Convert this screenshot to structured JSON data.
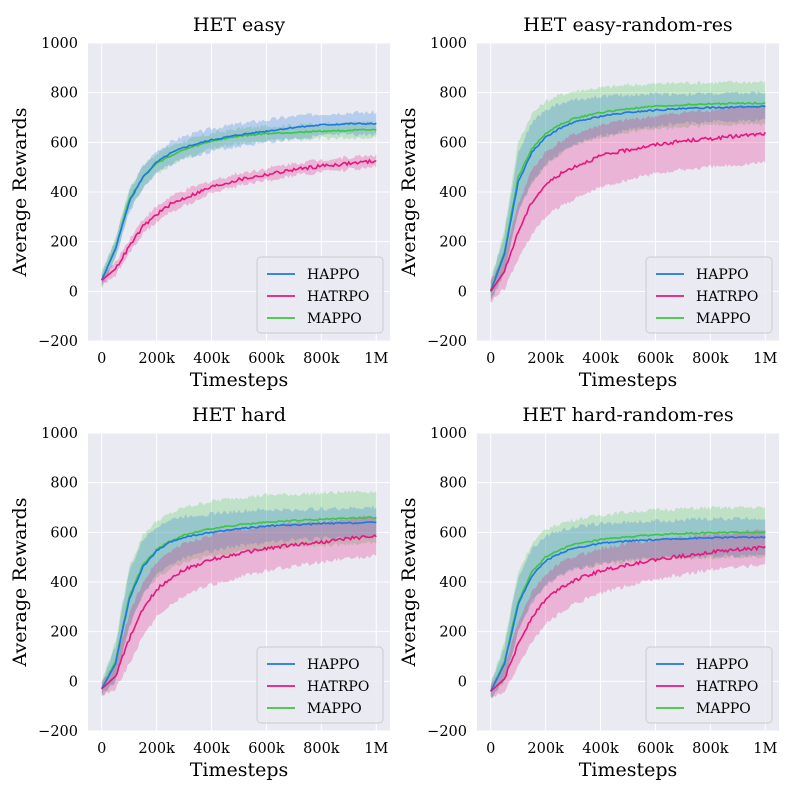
{
  "figure": {
    "xlabel": "Timesteps",
    "ylabel": "Average Rewards"
  },
  "series_colors": {
    "HAPPO": "#1f77e0",
    "HATRPO": "#e8157f",
    "MAPPO": "#3ec63e"
  },
  "chart_data": [
    {
      "type": "line",
      "title": "HET easy",
      "xlabel": "Timesteps",
      "ylabel": "Average Rewards",
      "xlim": [
        0,
        1000000
      ],
      "ylim": [
        -200,
        1000
      ],
      "xticks": [
        "0",
        "200k",
        "400k",
        "600k",
        "800k",
        "1M"
      ],
      "yticks": [
        "−200",
        "0",
        "200",
        "400",
        "600",
        "800",
        "1000"
      ],
      "legend": [
        "HAPPO",
        "HATRPO",
        "MAPPO"
      ],
      "x": [
        0,
        50000,
        100000,
        150000,
        200000,
        250000,
        300000,
        400000,
        500000,
        600000,
        700000,
        800000,
        900000,
        1000000
      ],
      "series": [
        {
          "name": "HAPPO",
          "values": [
            45,
            170,
            360,
            460,
            520,
            555,
            580,
            610,
            630,
            645,
            660,
            670,
            675,
            675
          ],
          "band": [
            30,
            35,
            40,
            45,
            45,
            45,
            45,
            45,
            45,
            45,
            45,
            45,
            45,
            45
          ]
        },
        {
          "name": "HATRPO",
          "values": [
            45,
            90,
            180,
            260,
            310,
            350,
            375,
            420,
            450,
            470,
            490,
            505,
            515,
            525
          ],
          "band": [
            20,
            25,
            30,
            30,
            30,
            30,
            30,
            25,
            25,
            25,
            25,
            25,
            25,
            25
          ]
        },
        {
          "name": "MAPPO",
          "values": [
            45,
            175,
            370,
            460,
            515,
            545,
            570,
            605,
            625,
            635,
            640,
            645,
            648,
            650
          ],
          "band": [
            30,
            40,
            45,
            45,
            40,
            40,
            35,
            30,
            30,
            30,
            30,
            30,
            30,
            30
          ]
        }
      ]
    },
    {
      "type": "line",
      "title": "HET easy-random-res",
      "xlabel": "Timesteps",
      "ylabel": "Average Rewards",
      "xlim": [
        0,
        1000000
      ],
      "ylim": [
        -200,
        1000
      ],
      "xticks": [
        "0",
        "200k",
        "400k",
        "600k",
        "800k",
        "1M"
      ],
      "yticks": [
        "−200",
        "0",
        "200",
        "400",
        "600",
        "800",
        "1000"
      ],
      "legend": [
        "HAPPO",
        "HATRPO",
        "MAPPO"
      ],
      "x": [
        0,
        50000,
        100000,
        150000,
        200000,
        250000,
        300000,
        400000,
        500000,
        600000,
        700000,
        800000,
        900000,
        1000000
      ],
      "series": [
        {
          "name": "HAPPO",
          "values": [
            0,
            150,
            440,
            560,
            620,
            655,
            680,
            705,
            720,
            730,
            735,
            740,
            742,
            745
          ],
          "band": [
            40,
            80,
            120,
            120,
            110,
            100,
            90,
            80,
            70,
            65,
            60,
            55,
            55,
            55
          ]
        },
        {
          "name": "HATRPO",
          "values": [
            0,
            80,
            240,
            360,
            430,
            470,
            500,
            545,
            570,
            590,
            605,
            615,
            625,
            635
          ],
          "band": [
            40,
            70,
            110,
            130,
            130,
            130,
            130,
            125,
            120,
            115,
            115,
            115,
            115,
            115
          ]
        },
        {
          "name": "MAPPO",
          "values": [
            5,
            160,
            460,
            575,
            635,
            670,
            695,
            720,
            735,
            745,
            750,
            755,
            757,
            758
          ],
          "band": [
            40,
            90,
            140,
            140,
            130,
            120,
            110,
            100,
            95,
            90,
            90,
            85,
            85,
            85
          ]
        }
      ]
    },
    {
      "type": "line",
      "title": "HET hard",
      "xlabel": "Timesteps",
      "ylabel": "Average Rewards",
      "xlim": [
        0,
        1000000
      ],
      "ylim": [
        -200,
        1000
      ],
      "xticks": [
        "0",
        "200k",
        "400k",
        "600k",
        "800k",
        "1M"
      ],
      "yticks": [
        "−200",
        "0",
        "200",
        "400",
        "600",
        "800",
        "1000"
      ],
      "legend": [
        "HAPPO",
        "HATRPO",
        "MAPPO"
      ],
      "x": [
        0,
        50000,
        100000,
        150000,
        200000,
        250000,
        300000,
        400000,
        500000,
        600000,
        700000,
        800000,
        900000,
        1000000
      ],
      "series": [
        {
          "name": "HAPPO",
          "values": [
            -30,
            70,
            330,
            460,
            525,
            560,
            580,
            600,
            615,
            625,
            630,
            635,
            637,
            640
          ],
          "band": [
            25,
            70,
            110,
            110,
            100,
            90,
            85,
            75,
            70,
            65,
            60,
            60,
            60,
            60
          ]
        },
        {
          "name": "HATRPO",
          "values": [
            -30,
            20,
            170,
            290,
            370,
            415,
            450,
            490,
            515,
            535,
            550,
            560,
            575,
            585
          ],
          "band": [
            25,
            50,
            100,
            110,
            110,
            110,
            105,
            100,
            95,
            90,
            85,
            80,
            80,
            80
          ]
        },
        {
          "name": "MAPPO",
          "values": [
            -30,
            80,
            340,
            470,
            530,
            565,
            590,
            615,
            630,
            640,
            648,
            652,
            658,
            660
          ],
          "band": [
            30,
            80,
            120,
            120,
            115,
            110,
            110,
            110,
            110,
            110,
            105,
            105,
            105,
            105
          ]
        }
      ]
    },
    {
      "type": "line",
      "title": "HET hard-random-res",
      "xlabel": "Timesteps",
      "ylabel": "Average Rewards",
      "xlim": [
        0,
        1000000
      ],
      "ylim": [
        -200,
        1000
      ],
      "xticks": [
        "0",
        "200k",
        "400k",
        "600k",
        "800k",
        "1M"
      ],
      "yticks": [
        "−200",
        "0",
        "200",
        "400",
        "600",
        "800",
        "1000"
      ],
      "legend": [
        "HAPPO",
        "HATRPO",
        "MAPPO"
      ],
      "x": [
        0,
        50000,
        100000,
        150000,
        200000,
        250000,
        300000,
        400000,
        500000,
        600000,
        700000,
        800000,
        900000,
        1000000
      ],
      "series": [
        {
          "name": "HAPPO",
          "values": [
            -40,
            70,
            310,
            425,
            485,
            515,
            535,
            555,
            565,
            570,
            575,
            578,
            580,
            580
          ],
          "band": [
            25,
            70,
            110,
            110,
            100,
            90,
            85,
            80,
            75,
            75,
            75,
            75,
            75,
            75
          ]
        },
        {
          "name": "HATRPO",
          "values": [
            -40,
            10,
            150,
            260,
            330,
            375,
            405,
            445,
            470,
            490,
            505,
            520,
            530,
            540
          ],
          "band": [
            25,
            50,
            90,
            100,
            100,
            100,
            95,
            90,
            85,
            80,
            75,
            70,
            70,
            70
          ]
        },
        {
          "name": "MAPPO",
          "values": [
            -40,
            80,
            320,
            440,
            500,
            530,
            550,
            570,
            582,
            590,
            595,
            598,
            600,
            600
          ],
          "band": [
            30,
            80,
            120,
            115,
            110,
            105,
            100,
            100,
            100,
            100,
            100,
            100,
            100,
            100
          ]
        }
      ]
    }
  ]
}
